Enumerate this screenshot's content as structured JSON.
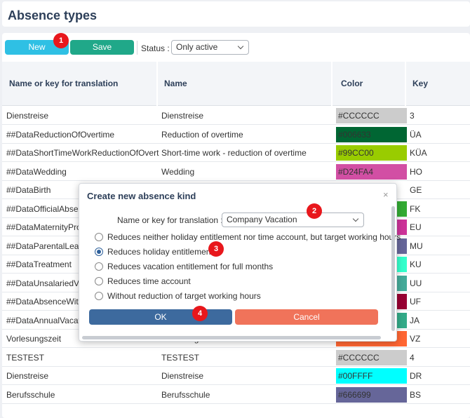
{
  "page": {
    "title": "Absence types"
  },
  "toolbar": {
    "new_label": "New",
    "save_label": "Save",
    "status_label": "Status :",
    "status_value": "Only active"
  },
  "table": {
    "columns": [
      "Name or key for translation",
      "Name",
      "Color",
      "Key"
    ],
    "rows": [
      {
        "key": "Dienstreise",
        "name": "Dienstreise",
        "color": "#CCCCCC",
        "code": "3"
      },
      {
        "key": "##DataReductionOfOvertime",
        "name": "Reduction of overtime",
        "color": "#006633",
        "code": "ÜA"
      },
      {
        "key": "##DataShortTimeWorkReductionOfOvertime",
        "name": "Short-time work - reduction of overtime",
        "color": "#99CC00",
        "code": "KÜA"
      },
      {
        "key": "##DataWedding",
        "name": "Wedding",
        "color": "#D24FA4",
        "code": "HO"
      },
      {
        "key": "##DataBirth",
        "name": "",
        "color": "#FFFFFF",
        "code": "GE"
      },
      {
        "key": "##DataOfficialAbsence",
        "name": "",
        "color": "#33AA33",
        "code": "FK"
      },
      {
        "key": "##DataMaternityProtection",
        "name": "",
        "color": "#CC3399",
        "code": "EU"
      },
      {
        "key": "##DataParentalLeave",
        "name": "",
        "color": "#666699",
        "code": "MU"
      },
      {
        "key": "##DataTreatment",
        "name": "",
        "color": "#33FFCC",
        "code": "KU"
      },
      {
        "key": "##DataUnsalariedVacation",
        "name": "",
        "color": "#44AA99",
        "code": "UU"
      },
      {
        "key": "##DataAbsenceWithoutPay",
        "name": "",
        "color": "#990033",
        "code": "UF"
      },
      {
        "key": "##DataAnnualVacation",
        "name": "",
        "color": "#33AA88",
        "code": "JA"
      },
      {
        "key": "Vorlesungszeit",
        "name": "Vorlesungszeit",
        "color": "#FF6633",
        "code": "VZ"
      },
      {
        "key": "TESTEST",
        "name": "TESTEST",
        "color": "#CCCCCC",
        "code": "4"
      },
      {
        "key": "Dienstreise",
        "name": "Dienstreise",
        "color": "#00FFFF",
        "code": "DR"
      },
      {
        "key": "Berufsschule",
        "name": "Berufsschule",
        "color": "#666699",
        "code": "BS"
      }
    ]
  },
  "dialog": {
    "title": "Create new absence kind",
    "close_icon": "×",
    "field_label": "Name or key for translation :",
    "field_value": "Company Vacation",
    "options": [
      {
        "label": "Reduces neither holiday entitlement nor time account, but target working hours",
        "checked": false
      },
      {
        "label": "Reduces holiday entitlement",
        "checked": true
      },
      {
        "label": "Reduces vacation entitlement for full months",
        "checked": false
      },
      {
        "label": "Reduces time account",
        "checked": false
      },
      {
        "label": "Without reduction of target working hours",
        "checked": false
      }
    ],
    "ok_label": "OK",
    "cancel_label": "Cancel"
  },
  "markers": [
    "1",
    "2",
    "3",
    "4"
  ],
  "colors": {
    "title": "#2D3F59",
    "new_button": "#2FC0E4",
    "save_button": "#20A889",
    "ok_button": "#3D6A9E",
    "cancel_button": "#F0735A",
    "marker": "#E8171C"
  }
}
